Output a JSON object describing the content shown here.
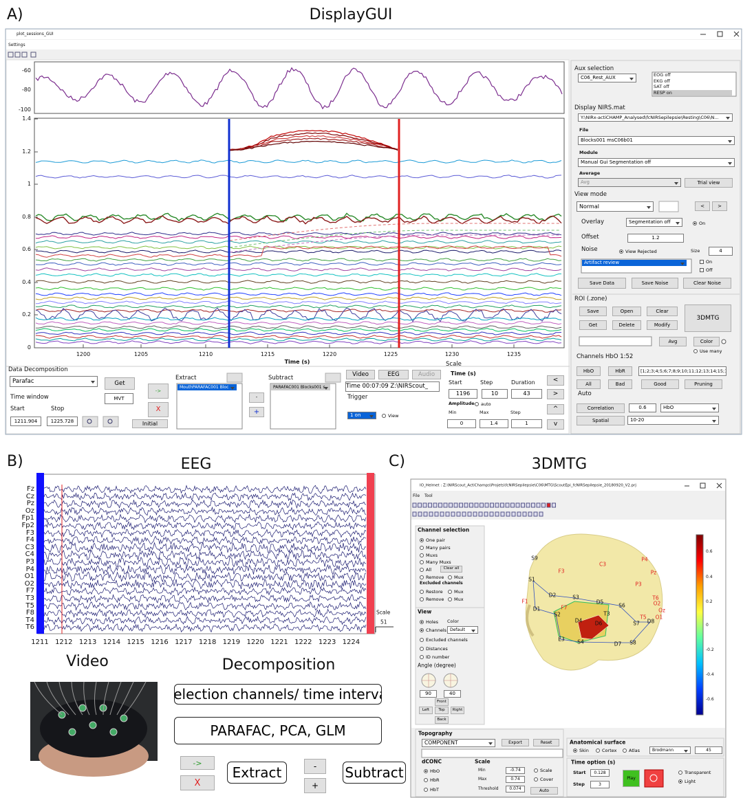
{
  "panel_a": {
    "label": "A)",
    "title": "DisplayGUI",
    "window_title": "plot_sessions_GUI",
    "menu": "Settings",
    "aux_yticks": [
      "-60",
      "-80",
      "-100"
    ],
    "main_yticks": [
      "1.4",
      "1.2",
      "1",
      "0.8",
      "0.6",
      "0.4",
      "0.2",
      "0"
    ],
    "xticks": [
      "1200",
      "1205",
      "1210",
      "1215",
      "1220",
      "1225",
      "1230",
      "1235"
    ],
    "xlabel": "Time (s)",
    "aux_selection": {
      "title": "Aux selection",
      "dropdown": "C06_Rest_AUX",
      "list": [
        "EOG off",
        "EKG off",
        "SAT off",
        "RESP  on"
      ]
    },
    "display_nirs": {
      "title": "Display NIRS.mat",
      "path": "Y:\\NIRx-actiCHAMP_Analysed\\fcNIRSepilepsie\\Resting\\C06\\N...",
      "file_label": "File",
      "file": "Blocks001 msC06b01",
      "module_label": "Module",
      "module": "Manual Gui Segmentation off",
      "average_label": "Average",
      "average": "Avg",
      "trial_view": "Trial view"
    },
    "view_mode": {
      "title": "View mode",
      "mode": "Normal",
      "prev": "<",
      "next": ">",
      "overlay_label": "Overlay",
      "overlay": "Segmentation off",
      "on": "On",
      "offset_label": "Offset",
      "offset": "1.2",
      "noise_label": "Noise",
      "view_rejected": "View Rejected",
      "size_label": "Size",
      "size": "4",
      "artifact": "Artifact review",
      "noise_on": "On",
      "noise_off": "Off",
      "save_data": "Save Data",
      "save_noise": "Save Noise",
      "clear_noise": "Clear Noise"
    },
    "roi": {
      "title": "ROI (.zone)",
      "save": "Save",
      "open": "Open",
      "clear": "Clear",
      "get": "Get",
      "delete": "Delete",
      "modify": "Modify",
      "mtg_button": "3DMTG",
      "avg": "Avg",
      "color": "Color",
      "use_many": "Use many",
      "channels_label": "Channels HbO 1:52",
      "hbo": "HbO",
      "hbr": "HbR",
      "channel_list": "[1;2;3;4;5;6;7;8;9;10;11;12;13;14;15;1",
      "all": "All",
      "bad": "Bad",
      "good": "Good",
      "pruning": "Pruning",
      "auto": "Auto",
      "correlation": "Correlation",
      "corr_value": "0.6",
      "corr_type": "HbO",
      "spatial": "Spatial",
      "spatial_value": "10-20"
    },
    "decomposition": {
      "title": "Data Decomposition",
      "method": "Parafac",
      "get": "Get",
      "time_window": "Time window",
      "mvt": "MVT",
      "start_label": "Start",
      "stop_label": "Stop",
      "start": "1211.904",
      "stop": "1225.728",
      "initial": "Initial",
      "arrow": "->",
      "cancel": "X",
      "extract": "Extract",
      "extract_item": "MouthPARAFAC001 Bloc",
      "minus": "-",
      "plus": "+",
      "subtract": "Subtract",
      "subtract_item": "PARAFAC001 Blocks001 s"
    },
    "media": {
      "video": "Video",
      "eeg": "EEG",
      "audio": "Audio",
      "time": "Time 00:07:09 Z:\\NIRScout_",
      "trigger": "Trigger",
      "trigger_value": "1  on",
      "view": "View"
    },
    "scale": {
      "title": "Scale",
      "time_label": "Time (s)",
      "start_label": "Start",
      "step_label": "Step",
      "duration_label": "Duration",
      "start": "1196",
      "step": "10",
      "duration": "43",
      "amplitude": "Amplitude",
      "auto": "auto",
      "min_label": "Min",
      "max_label": "Max",
      "amp_step_label": "Step",
      "min": "0",
      "max": "1.4",
      "amp_step": "1",
      "back": "<",
      "forward": ">",
      "up": "^",
      "down": "v"
    }
  },
  "panel_b": {
    "label": "B)",
    "title": "EEG",
    "channels": [
      "Fz",
      "Cz",
      "Pz",
      "Oz",
      "Fp1",
      "Fp2",
      "F3",
      "F4",
      "C3",
      "C4",
      "P3",
      "P4",
      "O1",
      "O2",
      "F7",
      "T3",
      "T5",
      "F8",
      "T4",
      "T6"
    ],
    "xticks": [
      "1211",
      "1212",
      "1213",
      "1214",
      "1215",
      "1216",
      "1217",
      "1218",
      "1219",
      "1220",
      "1221",
      "1222",
      "1223",
      "1224"
    ],
    "scale_label": "Scale",
    "scale_value": "51",
    "video_title": "Video",
    "decomposition_title": "Decomposition",
    "step_selection": "Selection channels/ time interval",
    "step_methods": "PARAFAC, PCA, GLM",
    "arrow": "->",
    "cancel": "X",
    "extract": "Extract",
    "minus": "-",
    "plus": "+",
    "subtract": "Subtract"
  },
  "panel_c": {
    "label": "C)",
    "title": "3DMTG",
    "window_title": "IO_Helmet : Z:\\NIRScout_ActiChamps\\Projets\\fcNIRSepilepsie\\C06\\MTG\\ScoutEpi_fcNIRSepilepsie_20180920_V2.prj",
    "menu": [
      "File",
      "Tool"
    ],
    "channel_selection": {
      "title": "Channel selection",
      "one_pair": "One pair",
      "many_pairs": "Many pairs",
      "muxs": "Muxs",
      "many_muxs": "Many Muxs",
      "all": "All",
      "clear_all": "Clear all",
      "remove": "Remove",
      "mux1": "Mux",
      "excluded": "Excluded channels",
      "restore": "Restore",
      "mux2": "Mux",
      "remove2": "Remove",
      "mux3": "Mux"
    },
    "view": {
      "title": "View",
      "holes": "Holes",
      "color": "Color",
      "channels": "Channels",
      "default": "Default",
      "excluded": "Excluded channels",
      "distances": "Distances",
      "id_number": "ID number",
      "angle": "Angle (degree)",
      "angle1": "90",
      "angle2": "40",
      "front": "Front",
      "left": "Left",
      "top": "Top",
      "right": "Right",
      "back": "Back"
    },
    "colorbar_ticks": [
      "0.6",
      "0.4",
      "0.2",
      "0",
      "-0.2",
      "-0.4",
      "-0.6"
    ],
    "optodes": [
      "S9",
      "S1",
      "D2",
      "S3",
      "D5",
      "S6",
      "D1",
      "S2",
      "D4",
      "T3",
      "D6",
      "S7",
      "D8",
      "D7",
      "S8",
      "E3",
      "S4",
      "F7",
      "F3",
      "C3",
      "P4",
      "Pz",
      "P3",
      "O2",
      "Oz",
      "O1",
      "T6",
      "T5",
      "F1"
    ],
    "topography": {
      "title": "Topography",
      "component": "COMPONENT",
      "export": "Export",
      "reset": "Reset",
      "dconc": "dCONC",
      "hbo": "HbO",
      "hbr": "HbR",
      "hbt": "HbT",
      "scale": "Scale",
      "min_label": "Min",
      "max_label": "Max",
      "threshold_label": "Threshold",
      "min": "-0.74",
      "max": "0.74",
      "threshold": "0.074",
      "scale_radio": "Scale",
      "cover": "Cover",
      "auto": "Auto"
    },
    "anatomical": {
      "title": "Anatomical surface",
      "skin": "Skin",
      "cortex": "Cortex",
      "atlas": "Atlas",
      "atlas_type": "Brodmann",
      "atlas_value": "45"
    },
    "time_option": {
      "title": "Time option (s)",
      "start_label": "Start",
      "start": "0.128",
      "step_label": "Step",
      "step": "3",
      "play": "Play",
      "transparent": "Transparent",
      "light": "Light"
    }
  }
}
